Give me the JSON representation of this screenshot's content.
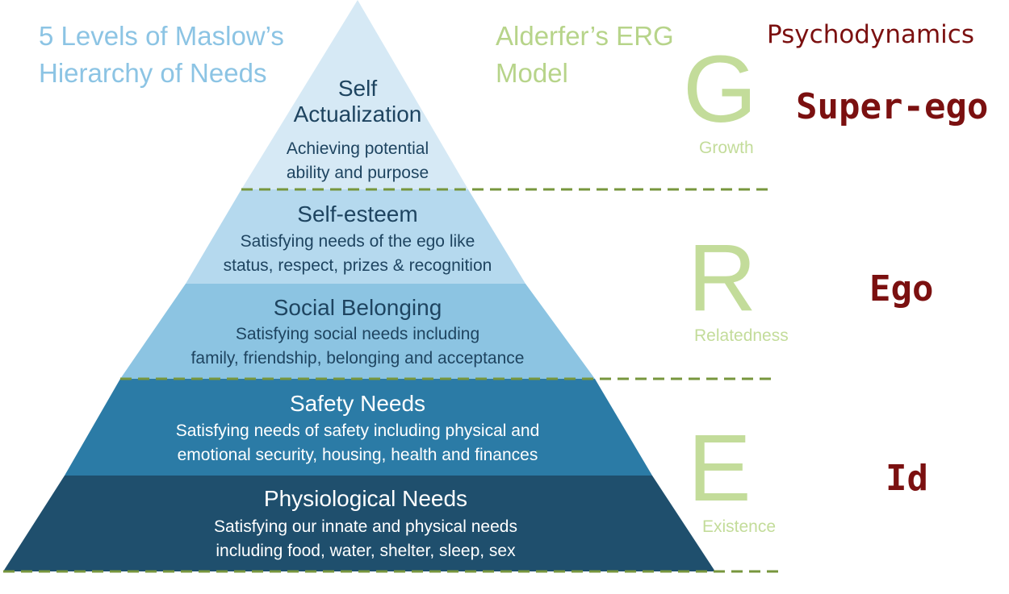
{
  "headers": {
    "maslow_line1": "5 Levels of Maslow’s",
    "maslow_line2": "Hierarchy of Needs",
    "alderfer_line1": "Alderfer’s ERG",
    "alderfer_line2": "Model",
    "psychodynamics": "Psychodynamics"
  },
  "pyramid": {
    "levels": [
      {
        "title_line1": "Self",
        "title_line2": "Actualization",
        "desc_line1": "Achieving potential",
        "desc_line2": "ability and purpose",
        "color": "#d6e9f5",
        "text_color": "#1e4460"
      },
      {
        "title_line1": "Self-esteem",
        "desc_line1": "Satisfying needs of the ego like",
        "desc_line2": "status, respect, prizes & recognition",
        "color": "#b5d9ee",
        "text_color": "#1e4460"
      },
      {
        "title_line1": "Social Belonging",
        "desc_line1": "Satisfying social needs including",
        "desc_line2": "family, friendship, belonging and acceptance",
        "color": "#8cc4e2",
        "text_color": "#1e4460"
      },
      {
        "title_line1": "Safety Needs",
        "desc_line1": "Satisfying needs of safety including physical and",
        "desc_line2": "emotional security, housing, health and finances",
        "color": "#2b7ba6",
        "text_color": "#ffffff"
      },
      {
        "title_line1": "Physiological Needs",
        "desc_line1": "Satisfying our innate and physical needs",
        "desc_line2": "including food, water, shelter, sleep, sex",
        "color": "#1f4f6d",
        "text_color": "#ffffff"
      }
    ]
  },
  "erg": [
    {
      "letter": "G",
      "word": "Growth"
    },
    {
      "letter": "R",
      "word": "Relatedness"
    },
    {
      "letter": "E",
      "word": "Existence"
    }
  ],
  "psychodynamics": [
    "Super-ego",
    "Ego",
    "Id"
  ],
  "colors": {
    "divider": "#77963d",
    "erg": "#c3dc9a",
    "maslow_header": "#8cc4e4",
    "alderfer_header": "#b7d48a",
    "psycho": "#7b1010"
  }
}
